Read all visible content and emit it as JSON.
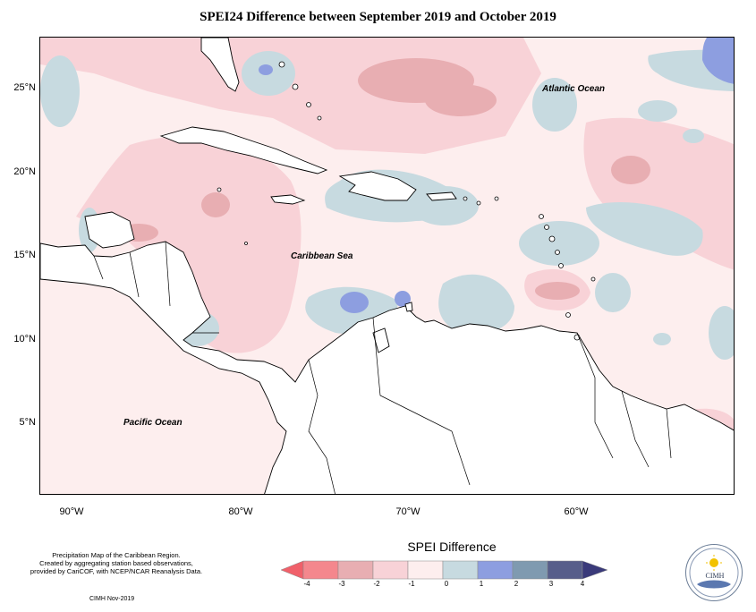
{
  "title": "SPEI24 Difference between September 2019 and October 2019",
  "map": {
    "y_labels": [
      "25°N",
      "20°N",
      "15°N",
      "10°N",
      "5°N"
    ],
    "x_labels": [
      "90°W",
      "80°W",
      "70°W",
      "60°W"
    ],
    "ocean_labels": {
      "atlantic": "Atlantic Ocean",
      "caribbean": "Caribbean Sea",
      "pacific": "Pacific Ocean"
    },
    "extent": {
      "lon": [
        -92,
        -50
      ],
      "lat": [
        1,
        28
      ]
    }
  },
  "credit": {
    "line1": "Precipitation Map of the Caribbean Region.",
    "line2": "Created by aggregating station based observations,",
    "line3": "provided by CariCOF, with NCEP/NCAR Reanalysis Data.",
    "line4": "CIMH Nov-2019"
  },
  "legend": {
    "title": "SPEI Difference",
    "ticks": [
      "-4",
      "-3",
      "-2",
      "-1",
      "0",
      "1",
      "2",
      "3",
      "4"
    ],
    "colors": [
      "#f4878d",
      "#e8aeb2",
      "#f8d2d7",
      "#fdeeee",
      "#c7dae0",
      "#8d9ee0",
      "#7f9ab0",
      "#575e8a"
    ],
    "arrow_left_color": "#f0606a",
    "arrow_right_color": "#3a3a7a"
  },
  "logo": {
    "text": "CIMH"
  }
}
